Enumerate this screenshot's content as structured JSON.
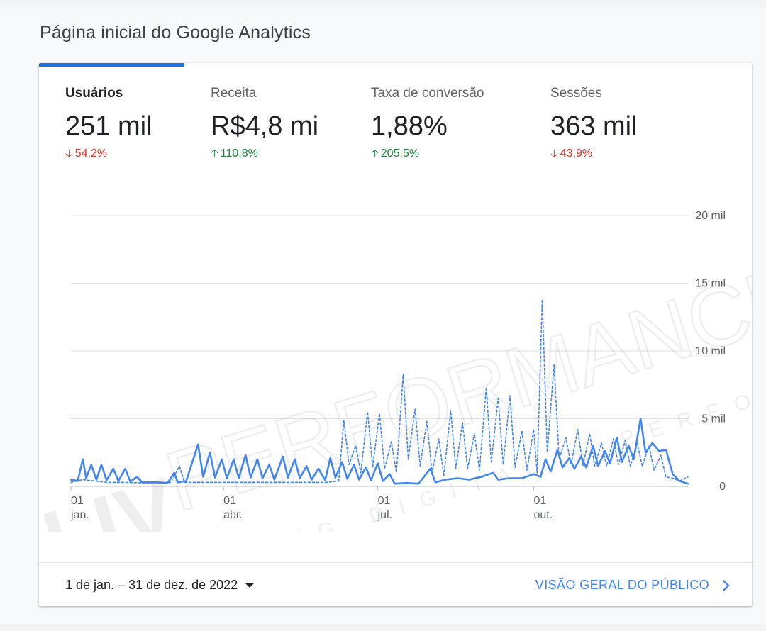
{
  "page": {
    "title": "Página inicial do Google Analytics"
  },
  "metrics": [
    {
      "label": "Usuários",
      "value": "251 mil",
      "change": "54,2%",
      "direction": "down",
      "active": true
    },
    {
      "label": "Receita",
      "value": "R$4,8 mi",
      "change": "110,8%",
      "direction": "up",
      "active": false
    },
    {
      "label": "Taxa de conversão",
      "value": "1,88%",
      "change": "205,5%",
      "direction": "up",
      "active": false
    },
    {
      "label": "Sessões",
      "value": "363 mil",
      "change": "43,9%",
      "direction": "down",
      "active": false
    }
  ],
  "footer": {
    "date_range": "1 de jan. – 31 de dez. de 2022",
    "audience_link": "VISÃO GERAL DO PÚBLICO"
  },
  "watermark": {
    "logo_text": "LIV",
    "brand_text": "PERFORMANCE",
    "tagline": "MARKETING DIGITAL & PERFORMANCE"
  },
  "colors": {
    "accent": "#1a73e8",
    "series": "#4285f4",
    "down": "#d93025",
    "up": "#188038"
  },
  "chart_data": {
    "type": "line",
    "y_tick_labels": [
      "0",
      "5 mil",
      "10 mil",
      "15 mil",
      "20 mil"
    ],
    "y_ticks": [
      0,
      5000,
      10000,
      15000,
      20000
    ],
    "ylim": [
      0,
      20000
    ],
    "x_tick_labels": [
      {
        "day": "01",
        "month": "jan.",
        "date": "2022-01-01"
      },
      {
        "day": "01",
        "month": "abr.",
        "date": "2022-04-01"
      },
      {
        "day": "01",
        "month": "jul.",
        "date": "2022-07-01"
      },
      {
        "day": "01",
        "month": "out.",
        "date": "2022-10-01"
      }
    ],
    "grid": true,
    "x_start": "2022-01-01",
    "x_end": "2022-12-31",
    "series": [
      {
        "style": "solid",
        "points": [
          [
            "2022-01-01",
            500
          ],
          [
            "2022-01-05",
            400
          ],
          [
            "2022-01-08",
            2000
          ],
          [
            "2022-01-10",
            600
          ],
          [
            "2022-01-13",
            1600
          ],
          [
            "2022-01-16",
            500
          ],
          [
            "2022-01-19",
            1600
          ],
          [
            "2022-01-22",
            450
          ],
          [
            "2022-01-26",
            1300
          ],
          [
            "2022-01-29",
            400
          ],
          [
            "2022-02-02",
            1300
          ],
          [
            "2022-02-05",
            350
          ],
          [
            "2022-02-09",
            700
          ],
          [
            "2022-02-12",
            300
          ],
          [
            "2022-02-20",
            300
          ],
          [
            "2022-02-27",
            250
          ],
          [
            "2022-03-03",
            1000
          ],
          [
            "2022-03-05",
            300
          ],
          [
            "2022-03-10",
            400
          ],
          [
            "2022-03-17",
            3100
          ],
          [
            "2022-03-20",
            700
          ],
          [
            "2022-03-24",
            2500
          ],
          [
            "2022-03-27",
            650
          ],
          [
            "2022-03-31",
            2000
          ],
          [
            "2022-04-03",
            600
          ],
          [
            "2022-04-07",
            2000
          ],
          [
            "2022-04-10",
            600
          ],
          [
            "2022-04-14",
            2300
          ],
          [
            "2022-04-17",
            650
          ],
          [
            "2022-04-21",
            2000
          ],
          [
            "2022-04-24",
            600
          ],
          [
            "2022-04-28",
            1600
          ],
          [
            "2022-05-01",
            500
          ],
          [
            "2022-05-06",
            2200
          ],
          [
            "2022-05-09",
            650
          ],
          [
            "2022-05-13",
            2000
          ],
          [
            "2022-05-16",
            600
          ],
          [
            "2022-05-20",
            1500
          ],
          [
            "2022-05-23",
            500
          ],
          [
            "2022-05-27",
            1300
          ],
          [
            "2022-05-31",
            450
          ],
          [
            "2022-06-03",
            2100
          ],
          [
            "2022-06-06",
            650
          ],
          [
            "2022-06-10",
            1800
          ],
          [
            "2022-06-13",
            550
          ],
          [
            "2022-06-17",
            1600
          ],
          [
            "2022-06-20",
            500
          ],
          [
            "2022-06-24",
            1400
          ],
          [
            "2022-06-27",
            450
          ],
          [
            "2022-07-01",
            1700
          ],
          [
            "2022-07-04",
            400
          ],
          [
            "2022-07-08",
            900
          ],
          [
            "2022-07-11",
            200
          ],
          [
            "2022-07-18",
            250
          ],
          [
            "2022-07-25",
            200
          ],
          [
            "2022-08-01",
            1300
          ],
          [
            "2022-08-04",
            300
          ],
          [
            "2022-08-10",
            500
          ],
          [
            "2022-08-17",
            600
          ],
          [
            "2022-08-24",
            500
          ],
          [
            "2022-08-31",
            700
          ],
          [
            "2022-09-07",
            1000
          ],
          [
            "2022-09-10",
            500
          ],
          [
            "2022-09-17",
            600
          ],
          [
            "2022-09-24",
            600
          ],
          [
            "2022-10-01",
            900
          ],
          [
            "2022-10-05",
            700
          ],
          [
            "2022-10-08",
            2000
          ],
          [
            "2022-10-11",
            1100
          ],
          [
            "2022-10-15",
            2700
          ],
          [
            "2022-10-18",
            1400
          ],
          [
            "2022-10-22",
            2100
          ],
          [
            "2022-10-25",
            1300
          ],
          [
            "2022-10-29",
            2200
          ],
          [
            "2022-11-01",
            1400
          ],
          [
            "2022-11-05",
            3000
          ],
          [
            "2022-11-08",
            1500
          ],
          [
            "2022-11-12",
            2600
          ],
          [
            "2022-11-15",
            1700
          ],
          [
            "2022-11-19",
            3600
          ],
          [
            "2022-11-22",
            1800
          ],
          [
            "2022-11-26",
            3000
          ],
          [
            "2022-11-29",
            2000
          ],
          [
            "2022-12-03",
            5000
          ],
          [
            "2022-12-06",
            2500
          ],
          [
            "2022-12-10",
            3200
          ],
          [
            "2022-12-14",
            2600
          ],
          [
            "2022-12-18",
            2700
          ],
          [
            "2022-12-22",
            900
          ],
          [
            "2022-12-26",
            400
          ],
          [
            "2022-12-31",
            200
          ]
        ]
      },
      {
        "style": "dashed",
        "points": [
          [
            "2022-01-01",
            300
          ],
          [
            "2022-01-08",
            500
          ],
          [
            "2022-01-15",
            400
          ],
          [
            "2022-01-22",
            300
          ],
          [
            "2022-02-01",
            300
          ],
          [
            "2022-02-15",
            250
          ],
          [
            "2022-03-01",
            300
          ],
          [
            "2022-03-06",
            1500
          ],
          [
            "2022-03-09",
            300
          ],
          [
            "2022-03-20",
            300
          ],
          [
            "2022-04-01",
            300
          ],
          [
            "2022-04-15",
            300
          ],
          [
            "2022-05-01",
            300
          ],
          [
            "2022-05-15",
            300
          ],
          [
            "2022-06-01",
            300
          ],
          [
            "2022-06-08",
            400
          ],
          [
            "2022-06-11",
            4900
          ],
          [
            "2022-06-14",
            1600
          ],
          [
            "2022-06-18",
            3000
          ],
          [
            "2022-06-21",
            1000
          ],
          [
            "2022-06-25",
            5500
          ],
          [
            "2022-06-28",
            1400
          ],
          [
            "2022-07-02",
            5400
          ],
          [
            "2022-07-05",
            1300
          ],
          [
            "2022-07-09",
            3300
          ],
          [
            "2022-07-12",
            1000
          ],
          [
            "2022-07-16",
            8300
          ],
          [
            "2022-07-19",
            2000
          ],
          [
            "2022-07-23",
            5700
          ],
          [
            "2022-07-26",
            1500
          ],
          [
            "2022-07-30",
            4800
          ],
          [
            "2022-08-02",
            1000
          ],
          [
            "2022-08-06",
            3500
          ],
          [
            "2022-08-09",
            800
          ],
          [
            "2022-08-13",
            5600
          ],
          [
            "2022-08-16",
            1300
          ],
          [
            "2022-08-20",
            4700
          ],
          [
            "2022-08-23",
            1300
          ],
          [
            "2022-08-27",
            3900
          ],
          [
            "2022-08-30",
            1200
          ],
          [
            "2022-09-03",
            7300
          ],
          [
            "2022-09-06",
            1800
          ],
          [
            "2022-09-10",
            6500
          ],
          [
            "2022-09-13",
            1600
          ],
          [
            "2022-09-17",
            6700
          ],
          [
            "2022-09-20",
            1400
          ],
          [
            "2022-09-24",
            4100
          ],
          [
            "2022-09-27",
            1200
          ],
          [
            "2022-10-01",
            4200
          ],
          [
            "2022-10-03",
            1000
          ],
          [
            "2022-10-06",
            13800
          ],
          [
            "2022-10-09",
            2500
          ],
          [
            "2022-10-13",
            9000
          ],
          [
            "2022-10-16",
            2000
          ],
          [
            "2022-10-20",
            3600
          ],
          [
            "2022-10-23",
            1600
          ],
          [
            "2022-10-27",
            4200
          ],
          [
            "2022-10-30",
            1500
          ],
          [
            "2022-11-03",
            3900
          ],
          [
            "2022-11-06",
            1500
          ],
          [
            "2022-11-10",
            3200
          ],
          [
            "2022-11-13",
            1500
          ],
          [
            "2022-11-17",
            3500
          ],
          [
            "2022-11-20",
            1600
          ],
          [
            "2022-11-24",
            3400
          ],
          [
            "2022-11-27",
            1500
          ],
          [
            "2022-12-01",
            3200
          ],
          [
            "2022-12-04",
            1500
          ],
          [
            "2022-12-08",
            3000
          ],
          [
            "2022-12-11",
            1200
          ],
          [
            "2022-12-15",
            2300
          ],
          [
            "2022-12-18",
            700
          ],
          [
            "2022-12-22",
            600
          ],
          [
            "2022-12-26",
            400
          ],
          [
            "2022-12-31",
            700
          ]
        ]
      }
    ]
  }
}
